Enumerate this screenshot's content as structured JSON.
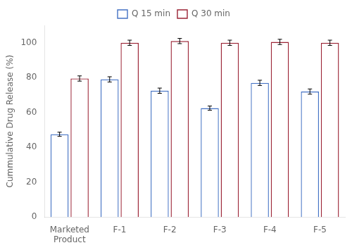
{
  "chart_data": {
    "type": "bar",
    "ylabel": "Cummulative Drug Release (%)",
    "categories": [
      "Marketed\nProduct",
      "F-1",
      "F-2",
      "F-3",
      "F-4",
      "F-5"
    ],
    "series": [
      {
        "name": "Q 15 min",
        "color": "#4472C4",
        "values": [
          47.5,
          79.0,
          72.5,
          62.5,
          77.0,
          72.0
        ],
        "errors": [
          1.2,
          1.5,
          1.5,
          1.2,
          1.5,
          1.5
        ]
      },
      {
        "name": "Q 30 min",
        "color": "#9B2335",
        "values": [
          79.5,
          100.0,
          101.0,
          100.0,
          100.5,
          100.0
        ],
        "errors": [
          1.5,
          1.5,
          1.5,
          1.5,
          1.5,
          1.5
        ]
      }
    ],
    "ylim": [
      0,
      110
    ],
    "yticks": [
      0,
      20,
      40,
      60,
      80,
      100
    ],
    "grid": false,
    "legend": "top"
  }
}
